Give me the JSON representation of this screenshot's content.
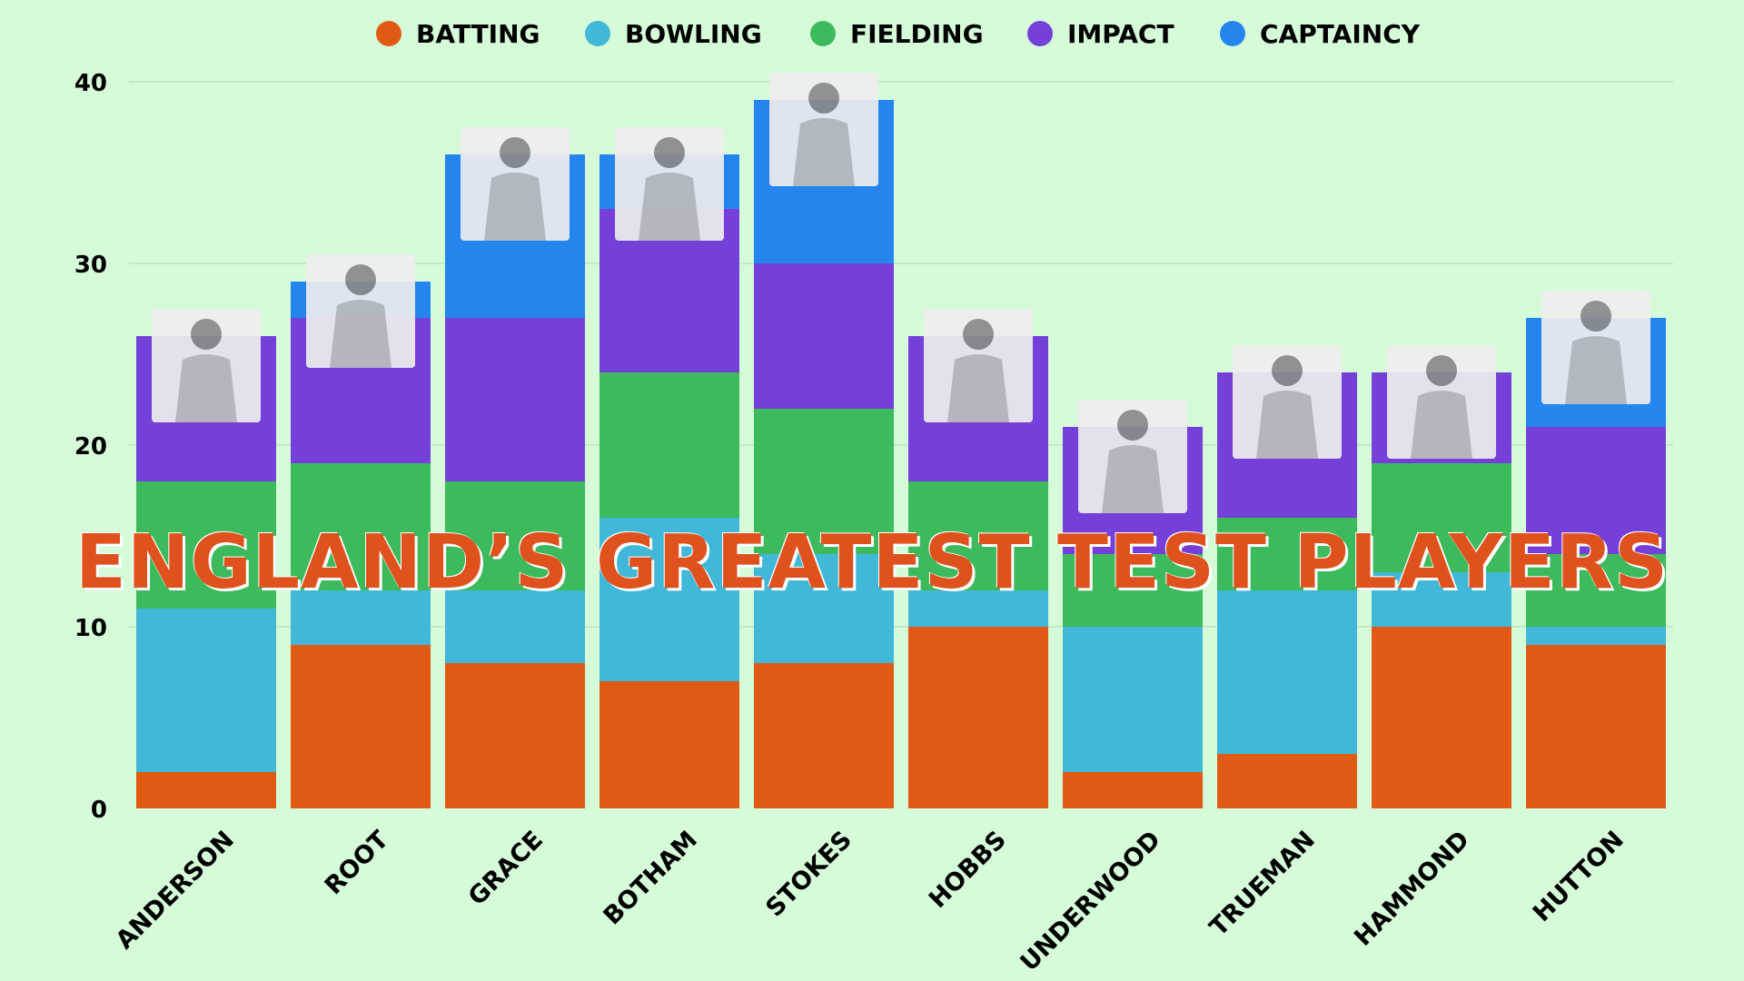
{
  "chart_data": {
    "type": "bar",
    "stacked": true,
    "title": "ENGLAND’S GREATEST TEST PLAYERS",
    "categories": [
      "ANDERSON",
      "ROOT",
      "GRACE",
      "BOTHAM",
      "STOKES",
      "HOBBS",
      "UNDERWOOD",
      "TRUEMAN",
      "HAMMOND",
      "HUTTON"
    ],
    "series": [
      {
        "name": "BATTING",
        "color": "#e05a14",
        "values": [
          2,
          9,
          8,
          7,
          8,
          10,
          2,
          3,
          10,
          9
        ]
      },
      {
        "name": "BOWLING",
        "color": "#42b8d8",
        "values": [
          9,
          3,
          4,
          9,
          6,
          2,
          8,
          9,
          3,
          1
        ]
      },
      {
        "name": "FIELDING",
        "color": "#3dba5c",
        "values": [
          7,
          7,
          6,
          8,
          8,
          6,
          4,
          4,
          6,
          4
        ]
      },
      {
        "name": "IMPACT",
        "color": "#7440d9",
        "values": [
          8,
          8,
          9,
          9,
          8,
          8,
          7,
          8,
          5,
          7
        ]
      },
      {
        "name": "CAPTAINCY",
        "color": "#2485ee",
        "values": [
          0,
          2,
          9,
          3,
          9,
          0,
          0,
          0,
          0,
          6
        ]
      }
    ],
    "yticks": [
      0,
      10,
      20,
      30,
      40
    ],
    "ylim": [
      0,
      40
    ],
    "grid": true,
    "legend_position": "top-center"
  }
}
